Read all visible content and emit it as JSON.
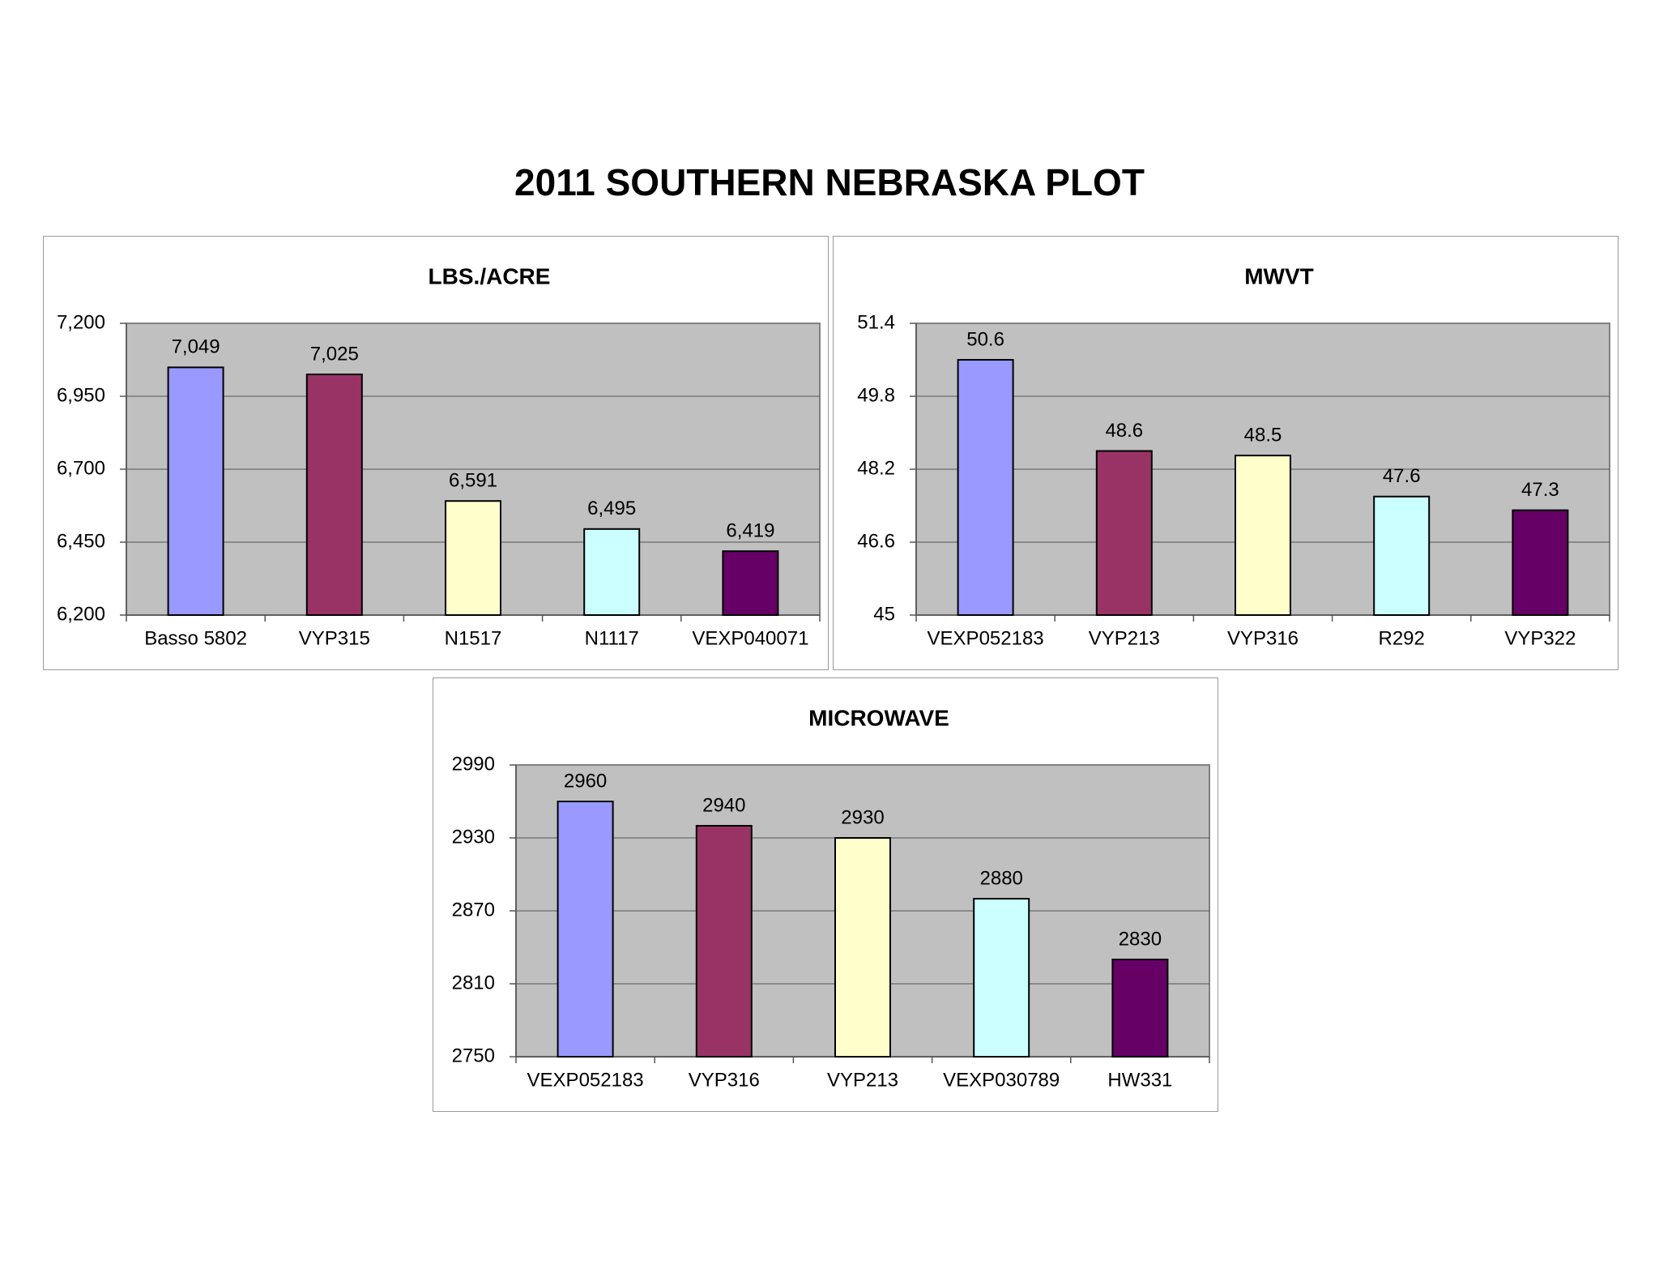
{
  "page": {
    "title": "2011 SOUTHERN NEBRASKA PLOT"
  },
  "chart_data": [
    {
      "type": "bar",
      "title": "LBS./ACRE",
      "xlabel": "",
      "ylabel": "",
      "categories": [
        "Basso 5802",
        "VYP315",
        "N1517",
        "N1117",
        "VEXP040071"
      ],
      "values": [
        7049,
        7025,
        6591,
        6495,
        6419
      ],
      "value_labels": [
        "7,049",
        "7,025",
        "6,591",
        "6,495",
        "6,419"
      ],
      "ylim": [
        6200,
        7200
      ],
      "yticks": [
        6200,
        6450,
        6700,
        6950,
        7200
      ],
      "ytick_labels": [
        "6,200",
        "6,450",
        "6,700",
        "6,950",
        "7,200"
      ],
      "grid": true,
      "plot_background": "#c0c0c0",
      "bar_colors": [
        "#9999ff",
        "#993366",
        "#ffffcc",
        "#ccffff",
        "#660066"
      ]
    },
    {
      "type": "bar",
      "title": "MWVT",
      "xlabel": "",
      "ylabel": "",
      "categories": [
        "VEXP052183",
        "VYP213",
        "VYP316",
        "R292",
        "VYP322"
      ],
      "values": [
        50.6,
        48.6,
        48.5,
        47.6,
        47.3
      ],
      "value_labels": [
        "50.6",
        "48.6",
        "48.5",
        "47.6",
        "47.3"
      ],
      "ylim": [
        45,
        51.4
      ],
      "yticks": [
        45,
        46.6,
        48.2,
        49.8,
        51.4
      ],
      "ytick_labels": [
        "45",
        "46.6",
        "48.2",
        "49.8",
        "51.4"
      ],
      "grid": true,
      "plot_background": "#c0c0c0",
      "bar_colors": [
        "#9999ff",
        "#993366",
        "#ffffcc",
        "#ccffff",
        "#660066"
      ]
    },
    {
      "type": "bar",
      "title": "MICROWAVE",
      "xlabel": "",
      "ylabel": "",
      "categories": [
        "VEXP052183",
        "VYP316",
        "VYP213",
        "VEXP030789",
        "HW331"
      ],
      "values": [
        2960,
        2940,
        2930,
        2880,
        2830
      ],
      "value_labels": [
        "2960",
        "2940",
        "2930",
        "2880",
        "2830"
      ],
      "ylim": [
        2750,
        2990
      ],
      "yticks": [
        2750,
        2810,
        2870,
        2930,
        2990
      ],
      "ytick_labels": [
        "2750",
        "2810",
        "2870",
        "2930",
        "2990"
      ],
      "grid": true,
      "plot_background": "#c0c0c0",
      "bar_colors": [
        "#9999ff",
        "#993366",
        "#ffffcc",
        "#ccffff",
        "#660066"
      ]
    }
  ]
}
